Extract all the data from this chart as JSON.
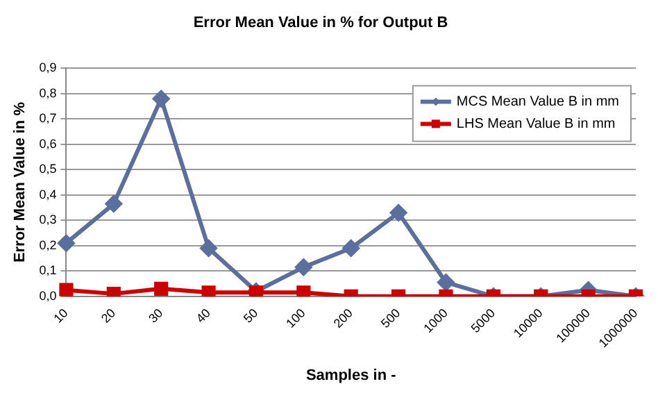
{
  "chart_data": {
    "type": "line",
    "title": "Error Mean Value in % for Output B",
    "xlabel": "Samples in -",
    "ylabel": "Error Mean Value in %",
    "categories": [
      "10",
      "20",
      "30",
      "40",
      "50",
      "100",
      "200",
      "500",
      "1000",
      "5000",
      "10000",
      "100000",
      "1000000"
    ],
    "series": [
      {
        "name": "MCS Mean Value B in mm",
        "color": "#5b6f9e",
        "marker": "diamond",
        "values": [
          0.21,
          0.365,
          0.78,
          0.19,
          0.02,
          0.115,
          0.19,
          0.33,
          0.055,
          0.0,
          0.0,
          0.025,
          0.0
        ]
      },
      {
        "name": "LHS Mean Value B in mm",
        "color": "#cc0000",
        "marker": "square",
        "values": [
          0.025,
          0.01,
          0.03,
          0.015,
          0.015,
          0.015,
          0.0,
          0.0,
          0.0,
          0.0,
          0.0,
          0.0,
          0.0
        ]
      }
    ],
    "ylim": [
      0,
      0.9
    ],
    "yticks": [
      {
        "value": 0,
        "label": "0,0"
      },
      {
        "value": 0.1,
        "label": "0,1"
      },
      {
        "value": 0.2,
        "label": "0,2"
      },
      {
        "value": 0.3,
        "label": "0,3"
      },
      {
        "value": 0.4,
        "label": "0,4"
      },
      {
        "value": 0.5,
        "label": "0,5"
      },
      {
        "value": 0.6,
        "label": "0,6"
      },
      {
        "value": 0.7,
        "label": "0,7"
      },
      {
        "value": 0.8,
        "label": "0,8"
      },
      {
        "value": 0.9,
        "label": "0,9"
      }
    ],
    "grid": "y",
    "legend": "top right"
  }
}
